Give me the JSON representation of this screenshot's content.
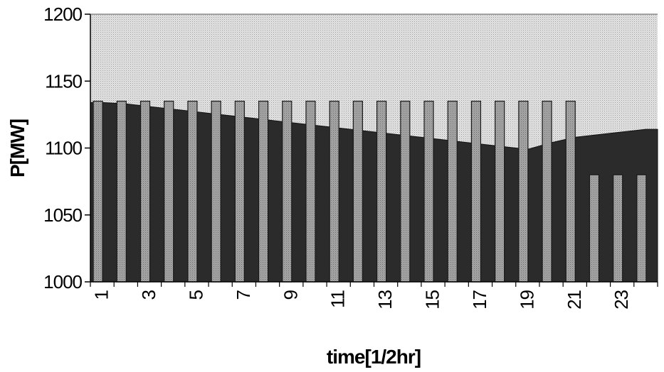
{
  "chart_data": {
    "type": "bar",
    "xlabel": "time[1/2hr]",
    "ylabel": "P[MW]",
    "ylim": [
      1000,
      1200
    ],
    "yticks": [
      "1000",
      "1050",
      "1100",
      "1150",
      "1200"
    ],
    "x": [
      1,
      2,
      3,
      4,
      5,
      6,
      7,
      8,
      9,
      10,
      11,
      12,
      13,
      14,
      15,
      16,
      17,
      18,
      19,
      20,
      21,
      22,
      23,
      24
    ],
    "xtick_labels": [
      "1",
      "3",
      "5",
      "7",
      "9",
      "11",
      "13",
      "15",
      "17",
      "19",
      "21",
      "23"
    ],
    "series": [
      {
        "type": "area",
        "values": [
          1134,
          1133,
          1131,
          1129,
          1127,
          1125,
          1123,
          1121,
          1119,
          1117,
          1115,
          1113,
          1111,
          1109,
          1107,
          1105,
          1103,
          1101,
          1099,
          1104,
          1108,
          1110,
          1112,
          1114
        ]
      },
      {
        "type": "bar",
        "values": [
          1135,
          1135,
          1135,
          1135,
          1135,
          1135,
          1135,
          1135,
          1135,
          1135,
          1135,
          1135,
          1135,
          1135,
          1135,
          1135,
          1135,
          1135,
          1135,
          1135,
          1135,
          1080,
          1080,
          1080
        ]
      }
    ],
    "grid": false,
    "legend": "none",
    "colors": {
      "area": "#2b2b2b",
      "bar": "#9a9a9a",
      "background": "#d8d8d8"
    }
  }
}
